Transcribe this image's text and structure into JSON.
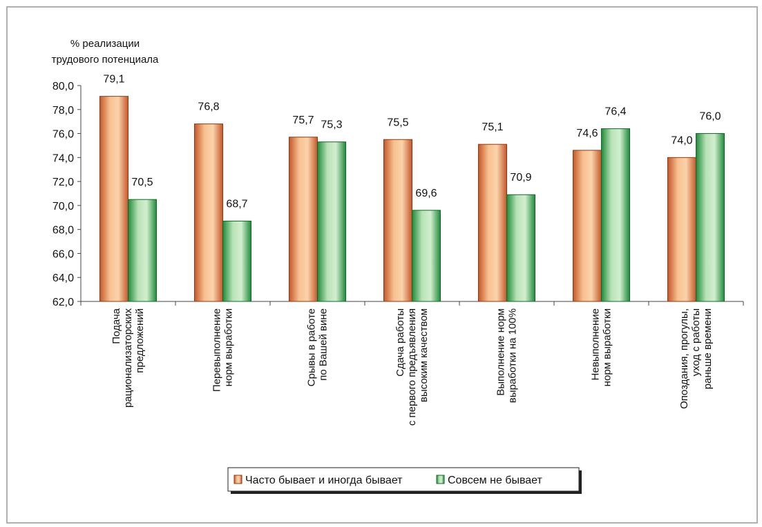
{
  "chart_data": {
    "type": "bar",
    "title": "",
    "ylabel": [
      "% реализации",
      "трудового потенциала"
    ],
    "xlabel": "",
    "ylim": [
      62.0,
      80.0
    ],
    "ytick_step": 2.0,
    "ytick_labels": [
      "62,0",
      "64,0",
      "66,0",
      "68,0",
      "70,0",
      "72,0",
      "74,0",
      "76,0",
      "78,0",
      "80,0"
    ],
    "grid": false,
    "legend_position": "bottom-center",
    "categories": [
      [
        "Подача",
        "рационализаторских",
        "предложений"
      ],
      [
        "Перевыполнение",
        "норм выработки"
      ],
      [
        "Срывы в работе",
        "по Вашей вине"
      ],
      [
        "Сдача работы",
        "с первого предъявления",
        "высоким качеством"
      ],
      [
        "Выполнение норм",
        "выработки на 100%"
      ],
      [
        "Невыполнение",
        "норм выработки"
      ],
      [
        "Опоздания, прогулы,",
        "уход с работы",
        "раньше времени"
      ]
    ],
    "series": [
      {
        "name": "Часто бывает и иногда бывает",
        "color": "#d9752f",
        "values": [
          79.1,
          76.8,
          75.7,
          75.5,
          75.1,
          74.6,
          74.0
        ],
        "value_labels": [
          "79,1",
          "76,8",
          "75,7",
          "75,5",
          "75,1",
          "74,6",
          "74,0"
        ]
      },
      {
        "name": "Совсем не бывает",
        "color": "#2e9a45",
        "values": [
          70.5,
          68.7,
          75.3,
          69.6,
          70.9,
          76.4,
          76.0
        ],
        "value_labels": [
          "70,5",
          "68,7",
          "75,3",
          "69,6",
          "70,9",
          "76,4",
          "76,0"
        ]
      }
    ]
  }
}
